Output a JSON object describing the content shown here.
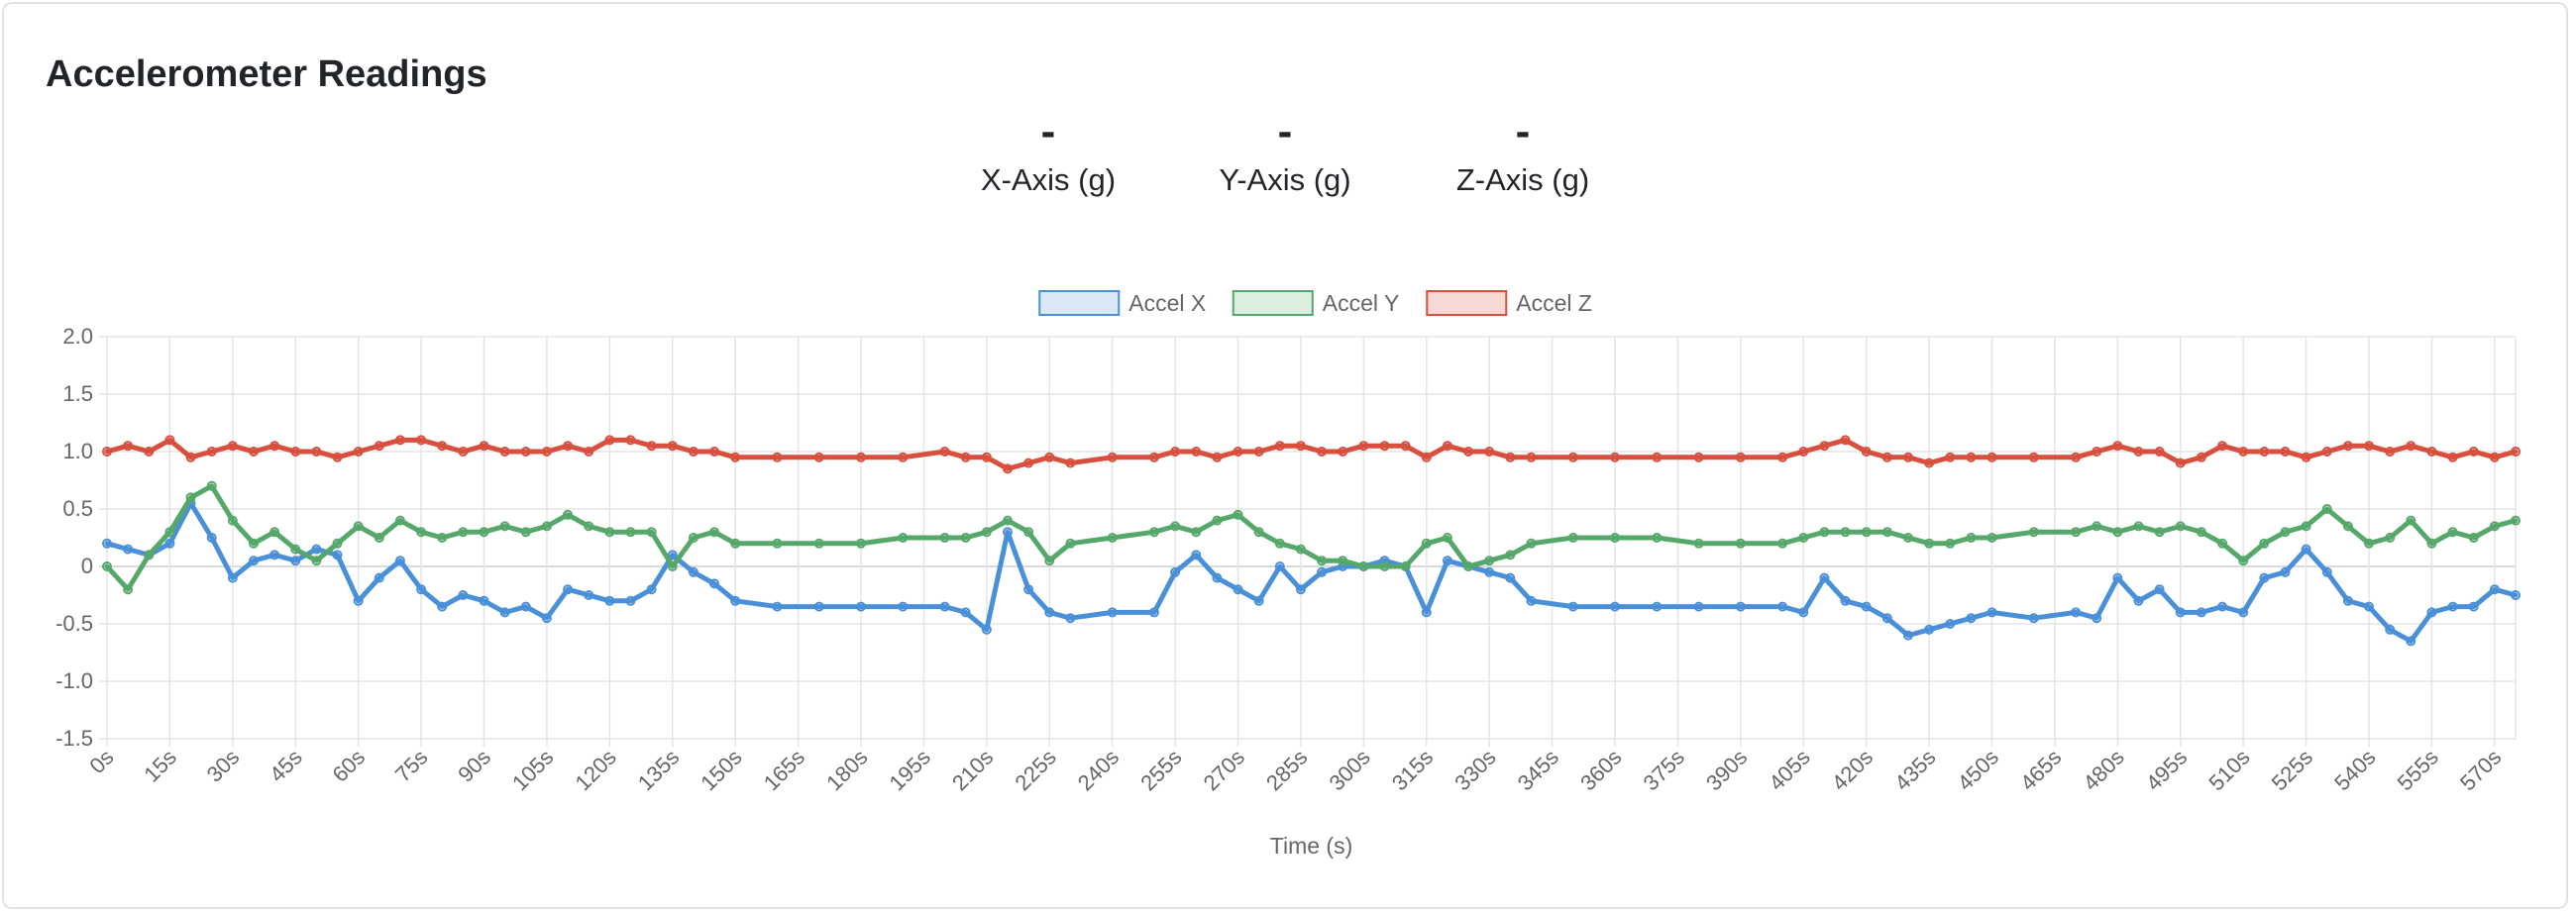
{
  "card": {
    "title": "Accelerometer Readings"
  },
  "readings": [
    {
      "value": "-",
      "label": "X-Axis (g)"
    },
    {
      "value": "-",
      "label": "Y-Axis (g)"
    },
    {
      "value": "-",
      "label": "Z-Axis (g)"
    }
  ],
  "chart_data": {
    "type": "line",
    "xlabel": "Time (s)",
    "ylabel": "",
    "xlim": [
      0,
      575
    ],
    "ylim": [
      -1.5,
      2.0
    ],
    "x_tick_labels": [
      "0s",
      "15s",
      "30s",
      "45s",
      "60s",
      "75s",
      "90s",
      "105s",
      "120s",
      "135s",
      "150s",
      "165s",
      "180s",
      "195s",
      "210s",
      "225s",
      "240s",
      "255s",
      "270s",
      "285s",
      "300s",
      "315s",
      "330s",
      "345s",
      "360s",
      "375s",
      "390s",
      "405s",
      "420s",
      "435s",
      "450s",
      "465s",
      "480s",
      "495s",
      "510s",
      "525s",
      "540s",
      "555s",
      "570s"
    ],
    "y_tick_labels": [
      "2.0",
      "1.5",
      "1.0",
      "0.5",
      "0",
      "-0.5",
      "-1.0",
      "-1.5"
    ],
    "grid": true,
    "legend_position": "top-center",
    "series": [
      {
        "name": "Accel X",
        "color": "#4a90d9",
        "fill": "#dbe9f7",
        "x": [
          0,
          5,
          10,
          15,
          20,
          25,
          30,
          35,
          40,
          45,
          50,
          55,
          60,
          65,
          70,
          75,
          80,
          85,
          90,
          95,
          100,
          105,
          110,
          115,
          120,
          125,
          130,
          135,
          140,
          145,
          150,
          160,
          170,
          180,
          190,
          200,
          205,
          210,
          215,
          220,
          225,
          230,
          240,
          250,
          255,
          260,
          265,
          270,
          275,
          280,
          285,
          290,
          295,
          300,
          305,
          310,
          315,
          320,
          325,
          330,
          335,
          340,
          350,
          360,
          370,
          380,
          390,
          400,
          405,
          410,
          415,
          420,
          425,
          430,
          435,
          440,
          445,
          450,
          460,
          470,
          475,
          480,
          485,
          490,
          495,
          500,
          505,
          510,
          515,
          520,
          525,
          530,
          535,
          540,
          545,
          550,
          555,
          560,
          565,
          570,
          575
        ],
        "y": [
          0.2,
          0.15,
          0.1,
          0.2,
          0.55,
          0.25,
          -0.1,
          0.05,
          0.1,
          0.05,
          0.15,
          0.1,
          -0.3,
          -0.1,
          0.05,
          -0.2,
          -0.35,
          -0.25,
          -0.3,
          -0.4,
          -0.35,
          -0.45,
          -0.2,
          -0.25,
          -0.3,
          -0.3,
          -0.2,
          0.1,
          -0.05,
          -0.15,
          -0.3,
          -0.35,
          -0.35,
          -0.35,
          -0.35,
          -0.35,
          -0.4,
          -0.55,
          0.3,
          -0.2,
          -0.4,
          -0.45,
          -0.4,
          -0.4,
          -0.05,
          0.1,
          -0.1,
          -0.2,
          -0.3,
          0.0,
          -0.2,
          -0.05,
          0.0,
          0.0,
          0.05,
          0.0,
          -0.4,
          0.05,
          0.0,
          -0.05,
          -0.1,
          -0.3,
          -0.35,
          -0.35,
          -0.35,
          -0.35,
          -0.35,
          -0.35,
          -0.4,
          -0.1,
          -0.3,
          -0.35,
          -0.45,
          -0.6,
          -0.55,
          -0.5,
          -0.45,
          -0.4,
          -0.45,
          -0.4,
          -0.45,
          -0.1,
          -0.3,
          -0.2,
          -0.4,
          -0.4,
          -0.35,
          -0.4,
          -0.1,
          -0.05,
          0.15,
          -0.05,
          -0.3,
          -0.35,
          -0.55,
          -0.65,
          -0.4,
          -0.35,
          -0.35,
          -0.2,
          -0.25
        ]
      },
      {
        "name": "Accel Y",
        "color": "#55a86a",
        "fill": "#dcefdf",
        "x": [
          0,
          5,
          10,
          15,
          20,
          25,
          30,
          35,
          40,
          45,
          50,
          55,
          60,
          65,
          70,
          75,
          80,
          85,
          90,
          95,
          100,
          105,
          110,
          115,
          120,
          125,
          130,
          135,
          140,
          145,
          150,
          160,
          170,
          180,
          190,
          200,
          205,
          210,
          215,
          220,
          225,
          230,
          240,
          250,
          255,
          260,
          265,
          270,
          275,
          280,
          285,
          290,
          295,
          300,
          305,
          310,
          315,
          320,
          325,
          330,
          335,
          340,
          350,
          360,
          370,
          380,
          390,
          400,
          405,
          410,
          415,
          420,
          425,
          430,
          435,
          440,
          445,
          450,
          460,
          470,
          475,
          480,
          485,
          490,
          495,
          500,
          505,
          510,
          515,
          520,
          525,
          530,
          535,
          540,
          545,
          550,
          555,
          560,
          565,
          570,
          575
        ],
        "y": [
          0.0,
          -0.2,
          0.1,
          0.3,
          0.6,
          0.7,
          0.4,
          0.2,
          0.3,
          0.15,
          0.05,
          0.2,
          0.35,
          0.25,
          0.4,
          0.3,
          0.25,
          0.3,
          0.3,
          0.35,
          0.3,
          0.35,
          0.45,
          0.35,
          0.3,
          0.3,
          0.3,
          0.0,
          0.25,
          0.3,
          0.2,
          0.2,
          0.2,
          0.2,
          0.25,
          0.25,
          0.25,
          0.3,
          0.4,
          0.3,
          0.05,
          0.2,
          0.25,
          0.3,
          0.35,
          0.3,
          0.4,
          0.45,
          0.3,
          0.2,
          0.15,
          0.05,
          0.05,
          0.0,
          0.0,
          0.0,
          0.2,
          0.25,
          0.0,
          0.05,
          0.1,
          0.2,
          0.25,
          0.25,
          0.25,
          0.2,
          0.2,
          0.2,
          0.25,
          0.3,
          0.3,
          0.3,
          0.3,
          0.25,
          0.2,
          0.2,
          0.25,
          0.25,
          0.3,
          0.3,
          0.35,
          0.3,
          0.35,
          0.3,
          0.35,
          0.3,
          0.2,
          0.05,
          0.2,
          0.3,
          0.35,
          0.5,
          0.35,
          0.2,
          0.25,
          0.4,
          0.2,
          0.3,
          0.25,
          0.35,
          0.4
        ]
      },
      {
        "name": "Accel Z",
        "color": "#d94f3d",
        "fill": "#f6d9d5",
        "x": [
          0,
          5,
          10,
          15,
          20,
          25,
          30,
          35,
          40,
          45,
          50,
          55,
          60,
          65,
          70,
          75,
          80,
          85,
          90,
          95,
          100,
          105,
          110,
          115,
          120,
          125,
          130,
          135,
          140,
          145,
          150,
          160,
          170,
          180,
          190,
          200,
          205,
          210,
          215,
          220,
          225,
          230,
          240,
          250,
          255,
          260,
          265,
          270,
          275,
          280,
          285,
          290,
          295,
          300,
          305,
          310,
          315,
          320,
          325,
          330,
          335,
          340,
          350,
          360,
          370,
          380,
          390,
          400,
          405,
          410,
          415,
          420,
          425,
          430,
          435,
          440,
          445,
          450,
          460,
          470,
          475,
          480,
          485,
          490,
          495,
          500,
          505,
          510,
          515,
          520,
          525,
          530,
          535,
          540,
          545,
          550,
          555,
          560,
          565,
          570,
          575
        ],
        "y": [
          1.0,
          1.05,
          1.0,
          1.1,
          0.95,
          1.0,
          1.05,
          1.0,
          1.05,
          1.0,
          1.0,
          0.95,
          1.0,
          1.05,
          1.1,
          1.1,
          1.05,
          1.0,
          1.05,
          1.0,
          1.0,
          1.0,
          1.05,
          1.0,
          1.1,
          1.1,
          1.05,
          1.05,
          1.0,
          1.0,
          0.95,
          0.95,
          0.95,
          0.95,
          0.95,
          1.0,
          0.95,
          0.95,
          0.85,
          0.9,
          0.95,
          0.9,
          0.95,
          0.95,
          1.0,
          1.0,
          0.95,
          1.0,
          1.0,
          1.05,
          1.05,
          1.0,
          1.0,
          1.05,
          1.05,
          1.05,
          0.95,
          1.05,
          1.0,
          1.0,
          0.95,
          0.95,
          0.95,
          0.95,
          0.95,
          0.95,
          0.95,
          0.95,
          1.0,
          1.05,
          1.1,
          1.0,
          0.95,
          0.95,
          0.9,
          0.95,
          0.95,
          0.95,
          0.95,
          0.95,
          1.0,
          1.05,
          1.0,
          1.0,
          0.9,
          0.95,
          1.05,
          1.0,
          1.0,
          1.0,
          0.95,
          1.0,
          1.05,
          1.05,
          1.0,
          1.05,
          1.0,
          0.95,
          1.0,
          0.95,
          1.0
        ]
      }
    ]
  }
}
